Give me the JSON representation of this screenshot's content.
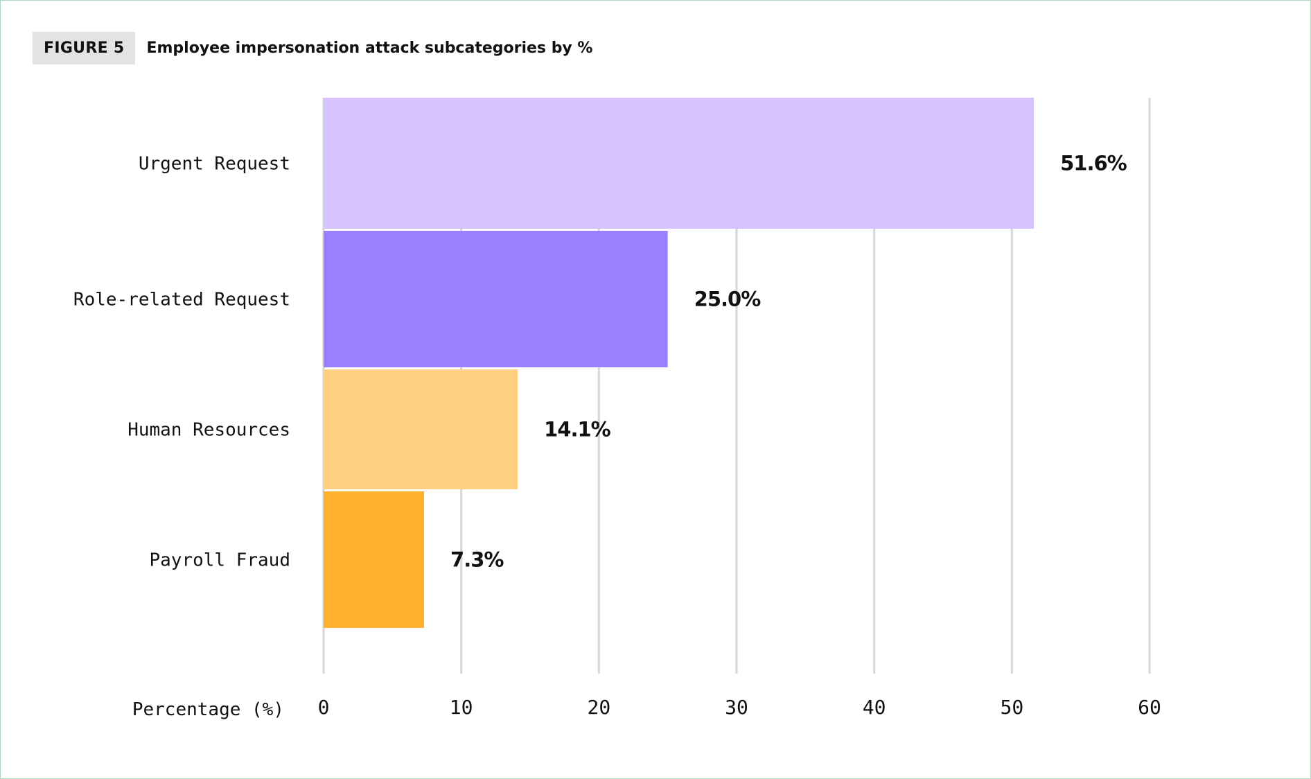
{
  "figure": {
    "badge": "FIGURE 5",
    "title": "Employee impersonation attack subcategories by %"
  },
  "chart_data": {
    "type": "bar",
    "orientation": "horizontal",
    "categories": [
      "Urgent Request",
      "Role-related Request",
      "Human Resources",
      "Payroll Fraud"
    ],
    "values": [
      51.6,
      25.0,
      14.1,
      7.3
    ],
    "value_labels": [
      "51.6%",
      "25.0%",
      "14.1%",
      "7.3%"
    ],
    "colors": [
      "#d5c2ff",
      "#9a80ff",
      "#ffd07f",
      "#ffb12f"
    ],
    "xlabel": "Percentage (%)",
    "ylabel": "",
    "xlim": [
      0,
      60
    ],
    "xticks": [
      "0",
      "10",
      "20",
      "30",
      "40",
      "50",
      "60"
    ],
    "grid": true,
    "grid_color": "#d6d6d6",
    "legend": "none"
  }
}
